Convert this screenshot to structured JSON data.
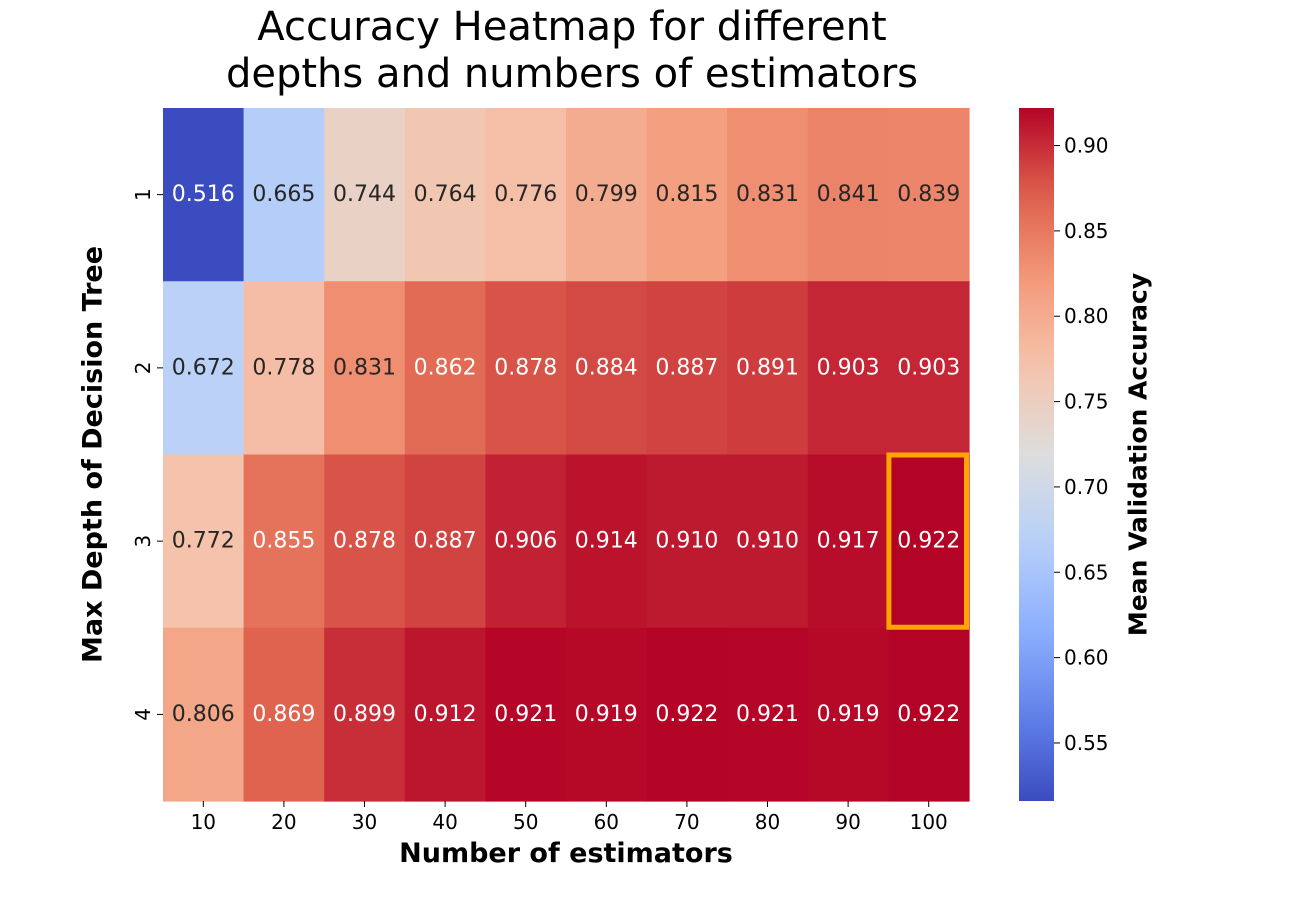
{
  "chart_data": {
    "type": "heatmap",
    "title": "Accuracy Heatmap for different\ndepths and numbers of estimators",
    "title_lines": [
      "Accuracy Heatmap for different",
      "depths and numbers of estimators"
    ],
    "xlabel": "Number of estimators",
    "ylabel": "Max Depth of Decision Tree",
    "x_categories": [
      "10",
      "20",
      "30",
      "40",
      "50",
      "60",
      "70",
      "80",
      "90",
      "100"
    ],
    "y_categories": [
      "1",
      "2",
      "3",
      "4"
    ],
    "values": [
      [
        0.516,
        0.665,
        0.744,
        0.764,
        0.776,
        0.799,
        0.815,
        0.831,
        0.841,
        0.839
      ],
      [
        0.672,
        0.778,
        0.831,
        0.862,
        0.878,
        0.884,
        0.887,
        0.891,
        0.903,
        0.903
      ],
      [
        0.772,
        0.855,
        0.878,
        0.887,
        0.906,
        0.914,
        0.91,
        0.91,
        0.917,
        0.922
      ],
      [
        0.806,
        0.869,
        0.899,
        0.912,
        0.921,
        0.919,
        0.922,
        0.921,
        0.919,
        0.922
      ]
    ],
    "colormap": "coolwarm",
    "vmin": 0.516,
    "vmax": 0.922,
    "colorbar": {
      "label": "Mean Validation Accuracy",
      "ticks": [
        0.55,
        0.6,
        0.65,
        0.7,
        0.75,
        0.8,
        0.85,
        0.9
      ],
      "tick_labels": [
        "0.55",
        "0.60",
        "0.65",
        "0.70",
        "0.75",
        "0.80",
        "0.85",
        "0.90"
      ]
    },
    "highlight": {
      "row": 2,
      "col": 9,
      "color": "#ffa500"
    },
    "annotation_dark_color": "#262626",
    "annotation_light_color": "#ffffff"
  }
}
